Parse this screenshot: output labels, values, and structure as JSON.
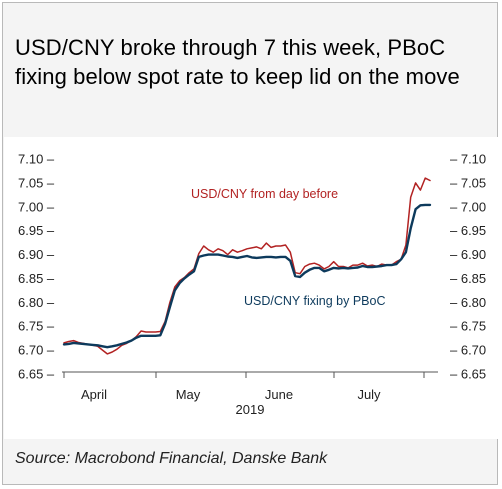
{
  "title": "USD/CNY broke through 7 this week, PBoC fixing below spot rate to keep lid on the move",
  "source": "Source: Macrobond Financial, Danske Bank",
  "chart_data": {
    "type": "line",
    "y_ticks": [
      "7.10",
      "7.05",
      "7.00",
      "6.95",
      "6.90",
      "6.85",
      "6.80",
      "6.75",
      "6.70",
      "6.65"
    ],
    "ylim": [
      6.65,
      7.1
    ],
    "x_tick_labels": [
      "April",
      "May",
      "June",
      "July"
    ],
    "x_year_label": "2019",
    "series": [
      {
        "name": "USD/CNY from day before",
        "color": "#b22222",
        "values": [
          6.715,
          6.718,
          6.72,
          6.716,
          6.714,
          6.712,
          6.71,
          6.708,
          6.7,
          6.692,
          6.696,
          6.702,
          6.71,
          6.714,
          6.72,
          6.728,
          6.74,
          6.738,
          6.738,
          6.738,
          6.739,
          6.76,
          6.8,
          6.832,
          6.845,
          6.852,
          6.862,
          6.87,
          6.902,
          6.918,
          6.91,
          6.905,
          6.912,
          6.908,
          6.9,
          6.91,
          6.905,
          6.908,
          6.912,
          6.914,
          6.916,
          6.912,
          6.924,
          6.915,
          6.918,
          6.918,
          6.92,
          6.905,
          6.862,
          6.86,
          6.875,
          6.88,
          6.882,
          6.878,
          6.87,
          6.875,
          6.885,
          6.875,
          6.875,
          6.872,
          6.878,
          6.878,
          6.882,
          6.876,
          6.878,
          6.875,
          6.88,
          6.878,
          6.878,
          6.885,
          6.89,
          6.92,
          7.02,
          7.05,
          7.035,
          7.06,
          7.055
        ],
        "label": "USD/CNY from day before"
      },
      {
        "name": "USD/CNY fixing by PBoC",
        "color": "#0d3a5c",
        "values": [
          6.712,
          6.713,
          6.715,
          6.714,
          6.713,
          6.712,
          6.711,
          6.71,
          6.708,
          6.706,
          6.708,
          6.71,
          6.713,
          6.716,
          6.72,
          6.726,
          6.73,
          6.73,
          6.73,
          6.73,
          6.731,
          6.755,
          6.79,
          6.825,
          6.84,
          6.85,
          6.858,
          6.865,
          6.895,
          6.898,
          6.9,
          6.9,
          6.9,
          6.898,
          6.896,
          6.895,
          6.893,
          6.895,
          6.897,
          6.894,
          6.893,
          6.894,
          6.895,
          6.895,
          6.894,
          6.895,
          6.895,
          6.887,
          6.855,
          6.853,
          6.862,
          6.868,
          6.872,
          6.872,
          6.865,
          6.868,
          6.872,
          6.871,
          6.872,
          6.871,
          6.872,
          6.873,
          6.876,
          6.874,
          6.874,
          6.875,
          6.876,
          6.878,
          6.878,
          6.88,
          6.89,
          6.905,
          6.955,
          6.995,
          7.003,
          7.004,
          7.004
        ],
        "label": "USD/CNY fixing by PBoC"
      }
    ],
    "grid": false,
    "legend": "inline labels"
  }
}
